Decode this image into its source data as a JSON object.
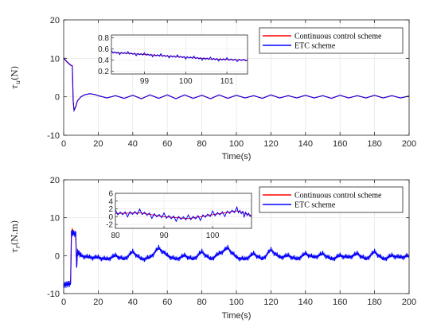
{
  "colors": {
    "continuous": "#ff0000",
    "etc": "#0000ff",
    "axis": "#262626",
    "grid": "#e5e5e5"
  },
  "chart_data": [
    {
      "type": "line",
      "ylabel_text": "τu(N)",
      "ylabel_main": "τ",
      "ylabel_sub": "u",
      "ylabel_unit": "(N)",
      "xlabel": "Time(s)",
      "xlim": [
        0,
        200
      ],
      "ylim": [
        -10,
        20
      ],
      "xticks": [
        0,
        20,
        40,
        60,
        80,
        100,
        120,
        140,
        160,
        180,
        200
      ],
      "yticks": [
        -10,
        0,
        10,
        20
      ],
      "grid": true,
      "legend_position": "top-right",
      "series": [
        {
          "name": "Continuous control scheme",
          "x": [
            0,
            1,
            2,
            3,
            4,
            5,
            5.5,
            6,
            7,
            8,
            10,
            12,
            15,
            18,
            20,
            25,
            30,
            35,
            40,
            45,
            50,
            55,
            60,
            65,
            70,
            75,
            80,
            85,
            90,
            95,
            100,
            105,
            110,
            115,
            120,
            125,
            130,
            135,
            140,
            145,
            150,
            155,
            160,
            165,
            170,
            175,
            180,
            185,
            190,
            195,
            200
          ],
          "y": [
            10,
            9.5,
            9.0,
            8.6,
            8.2,
            8.0,
            -1.0,
            -3.5,
            -2.5,
            -1.0,
            0.0,
            0.5,
            0.8,
            0.6,
            0.3,
            -0.3,
            0.3,
            -0.4,
            0.4,
            -0.5,
            0.5,
            -0.4,
            0.5,
            -0.5,
            0.5,
            -0.4,
            0.4,
            -0.5,
            0.5,
            -0.4,
            0.4,
            -0.3,
            0.3,
            -0.4,
            0.5,
            -0.3,
            0.3,
            -0.3,
            0.4,
            -0.3,
            0.3,
            -0.4,
            0.4,
            -0.3,
            0.3,
            -0.3,
            0.4,
            -0.3,
            0.3,
            -0.3,
            0.2
          ]
        },
        {
          "name": "ETC scheme",
          "x": [
            0,
            1,
            2,
            3,
            4,
            5,
            5.5,
            6,
            7,
            8,
            10,
            12,
            15,
            18,
            20,
            25,
            30,
            35,
            40,
            45,
            50,
            55,
            60,
            65,
            70,
            75,
            80,
            85,
            90,
            95,
            100,
            105,
            110,
            115,
            120,
            125,
            130,
            135,
            140,
            145,
            150,
            155,
            160,
            165,
            170,
            175,
            180,
            185,
            190,
            195,
            200
          ],
          "y": [
            10.2,
            9.6,
            9.1,
            8.7,
            8.3,
            8.1,
            -1.1,
            -3.6,
            -2.6,
            -1.1,
            0.0,
            0.5,
            0.8,
            0.6,
            0.3,
            -0.3,
            0.3,
            -0.4,
            0.4,
            -0.5,
            0.5,
            -0.4,
            0.5,
            -0.5,
            0.5,
            -0.4,
            0.4,
            -0.5,
            0.5,
            -0.4,
            0.4,
            -0.3,
            0.3,
            -0.4,
            0.5,
            -0.3,
            0.3,
            -0.3,
            0.4,
            -0.3,
            0.3,
            -0.4,
            0.4,
            -0.3,
            0.3,
            -0.3,
            0.4,
            -0.3,
            0.3,
            -0.3,
            0.2
          ]
        }
      ],
      "inset": {
        "xlim": [
          98.2,
          101.5
        ],
        "ylim": [
          0.15,
          0.85
        ],
        "xticks": [
          99,
          100,
          101
        ],
        "yticks": [
          0.2,
          0.4,
          0.6,
          0.8
        ],
        "ytick_labels": [
          "0.2",
          "0.4",
          "0.6",
          "0.8"
        ],
        "series": [
          {
            "x": [
              98.2,
              98.6,
              99.0,
              99.4,
              99.8,
              100.2,
              100.6,
              101.0,
              101.5
            ],
            "y": [
              0.54,
              0.52,
              0.5,
              0.48,
              0.46,
              0.44,
              0.42,
              0.41,
              0.4
            ]
          },
          {
            "x": [
              98.2,
              98.6,
              99.0,
              99.4,
              99.8,
              100.2,
              100.6,
              101.0,
              101.5
            ],
            "y": [
              0.54,
              0.52,
              0.5,
              0.48,
              0.46,
              0.44,
              0.42,
              0.41,
              0.4
            ],
            "ripple": 0.04
          }
        ]
      }
    },
    {
      "type": "line",
      "ylabel_text": "τr(N.m)",
      "ylabel_main": "τ",
      "ylabel_sub": "r",
      "ylabel_unit": "(N.m)",
      "xlabel": "Time(s)",
      "xlim": [
        0,
        200
      ],
      "ylim": [
        -10,
        20
      ],
      "xticks": [
        0,
        20,
        40,
        60,
        80,
        100,
        120,
        140,
        160,
        180,
        200
      ],
      "yticks": [
        -10,
        0,
        10,
        20
      ],
      "grid": true,
      "legend_position": "top-right",
      "series": [
        {
          "name": "Continuous control scheme",
          "x": [
            0,
            1,
            2,
            3,
            4,
            4.5,
            5,
            6,
            7,
            7.5,
            8,
            9,
            10,
            15,
            20,
            25,
            30,
            35,
            40,
            45,
            50,
            55,
            60,
            65,
            70,
            75,
            80,
            85,
            90,
            95,
            100,
            105,
            110,
            115,
            120,
            125,
            130,
            135,
            140,
            145,
            150,
            155,
            160,
            165,
            170,
            175,
            180,
            185,
            190,
            195,
            200
          ],
          "y": [
            -7.5,
            -7.5,
            -7.4,
            -7.4,
            -7.3,
            6.0,
            7.0,
            6.0,
            5.5,
            -3.0,
            1.0,
            0.5,
            0.0,
            -0.5,
            -0.5,
            -1.0,
            0.0,
            -1.0,
            1.0,
            -1.0,
            -0.5,
            2.0,
            0.0,
            -1.0,
            0.0,
            -1.0,
            1.0,
            -1.0,
            0.5,
            2.0,
            -0.5,
            -1.0,
            0.5,
            -1.0,
            1.5,
            -0.5,
            0.0,
            -1.0,
            0.5,
            -0.5,
            0.5,
            -1.0,
            0.0,
            -0.5,
            0.5,
            -1.0,
            1.0,
            -1.0,
            0.0,
            -0.5,
            0.0
          ]
        },
        {
          "name": "ETC scheme",
          "x": [
            0,
            1,
            2,
            3,
            4,
            4.5,
            5,
            6,
            7,
            7.5,
            8,
            9,
            10,
            15,
            20,
            25,
            30,
            35,
            40,
            45,
            50,
            55,
            60,
            65,
            70,
            75,
            80,
            85,
            90,
            95,
            100,
            105,
            110,
            115,
            120,
            125,
            130,
            135,
            140,
            145,
            150,
            155,
            160,
            165,
            170,
            175,
            180,
            185,
            190,
            195,
            200
          ],
          "y": [
            -7.8,
            -7.7,
            -7.6,
            -7.5,
            -7.4,
            5.8,
            6.0,
            5.8,
            5.6,
            -3.2,
            1.0,
            0.5,
            0.0,
            -0.5,
            -0.5,
            -1.0,
            0.0,
            -1.0,
            1.0,
            -1.0,
            -0.5,
            2.0,
            0.0,
            -1.0,
            0.0,
            -1.0,
            1.0,
            -1.0,
            0.5,
            2.0,
            -0.5,
            -1.0,
            0.5,
            -1.0,
            1.5,
            -0.5,
            0.0,
            -1.0,
            0.5,
            -0.5,
            0.5,
            -1.0,
            0.0,
            -0.5,
            0.5,
            -1.0,
            1.0,
            -1.0,
            0.0,
            -0.5,
            0.0
          ],
          "ripple": 1.0
        }
      ],
      "inset": {
        "xlim": [
          80,
          108
        ],
        "ylim": [
          -3,
          6
        ],
        "xticks": [
          80,
          90,
          100
        ],
        "yticks": [
          -2,
          0,
          2,
          4,
          6
        ],
        "ytick_labels": [
          "-2",
          "0",
          "2",
          "4",
          "6"
        ],
        "series": [
          {
            "x": [
              80,
              85,
              90,
              95,
              100,
              105,
              108
            ],
            "y": [
              0.8,
              1.0,
              0.0,
              -0.5,
              0.5,
              1.5,
              0.3
            ]
          },
          {
            "x": [
              80,
              85,
              90,
              95,
              100,
              105,
              108
            ],
            "y": [
              0.8,
              1.0,
              0.0,
              -0.5,
              0.5,
              1.5,
              0.3
            ],
            "ripple": 1.2
          }
        ]
      }
    }
  ]
}
